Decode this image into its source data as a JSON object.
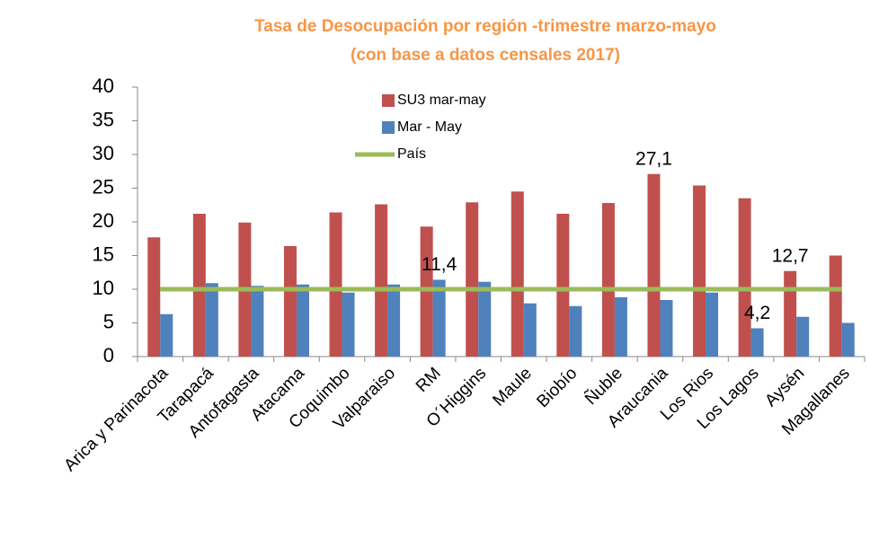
{
  "chart_data": {
    "type": "bar",
    "title": "Tasa de Desocupación por región -trimestre marzo-mayo",
    "subtitle": "(con base a datos censales 2017)",
    "categories": [
      "Arica y Parinacota",
      "Tarapacá",
      "Antofagasta",
      "Atacama",
      "Coquimbo",
      "Valparaiso",
      "RM",
      "O´Higgins",
      "Maule",
      "Biobío",
      "Ñuble",
      "Araucania",
      "Los Rios",
      "Los Lagos",
      "Aysén",
      "Magallanes"
    ],
    "series": [
      {
        "name": "SU3 mar-may",
        "type": "bar",
        "color": "#c0504d",
        "values": [
          17.7,
          21.2,
          19.9,
          16.4,
          21.4,
          22.6,
          19.3,
          22.9,
          24.5,
          21.2,
          22.8,
          27.1,
          25.4,
          23.5,
          12.7,
          15.0
        ],
        "value_labels": [
          null,
          null,
          null,
          null,
          null,
          null,
          null,
          null,
          null,
          null,
          null,
          "27,1",
          null,
          null,
          "12,7",
          null
        ]
      },
      {
        "name": "Mar - May",
        "type": "bar",
        "color": "#4f81bd",
        "values": [
          6.3,
          10.9,
          10.5,
          10.7,
          9.5,
          10.7,
          11.4,
          11.1,
          7.9,
          7.5,
          8.8,
          8.4,
          9.5,
          4.2,
          5.9,
          5.0
        ],
        "value_labels": [
          null,
          null,
          null,
          null,
          null,
          null,
          "11,4",
          null,
          null,
          null,
          null,
          null,
          null,
          "4,2",
          null,
          null
        ]
      },
      {
        "name": "País",
        "type": "line",
        "color": "#9bbb59",
        "values": [
          10,
          10,
          10,
          10,
          10,
          10,
          10,
          10,
          10,
          10,
          10,
          10,
          10,
          10,
          10,
          10
        ]
      }
    ],
    "ylim": [
      0,
      40
    ],
    "yticks": [
      0,
      5,
      10,
      15,
      20,
      25,
      30,
      35,
      40
    ],
    "grid": false,
    "legend": "top"
  }
}
